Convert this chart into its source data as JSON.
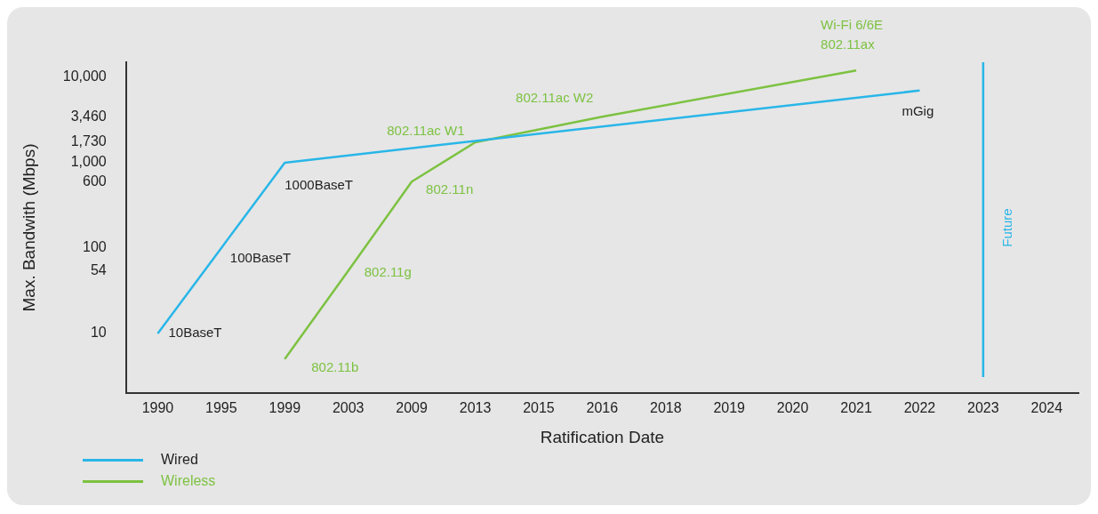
{
  "chart_data": {
    "type": "line",
    "xlabel": "Ratification Date",
    "ylabel": "Max. Bandwith (Mbps)",
    "categories": [
      "1990",
      "1995",
      "1999",
      "2003",
      "2009",
      "2013",
      "2015",
      "2016",
      "2018",
      "2019",
      "2020",
      "2021",
      "2022",
      "2023",
      "2024"
    ],
    "log": "y",
    "ylim": [
      2,
      15000
    ],
    "yticks": [
      10,
      54,
      100,
      600,
      {
        "value": 1000,
        "label": "1,000"
      },
      {
        "value": 1730,
        "label": "1,730"
      },
      {
        "value": 3460,
        "label": "3,460"
      },
      {
        "value": 10000,
        "label": "10,000"
      }
    ],
    "series": [
      {
        "name": "Wired",
        "color": "#29b6e8",
        "values": [
          10,
          100,
          1000,
          null,
          null,
          null,
          null,
          null,
          null,
          null,
          null,
          null,
          7000,
          null,
          null
        ]
      },
      {
        "name": "Wireless",
        "color": "#7dc242",
        "values": [
          null,
          null,
          5,
          54,
          600,
          1730,
          null,
          3460,
          null,
          null,
          null,
          12000,
          null,
          null,
          null
        ]
      }
    ],
    "annotations": [
      {
        "text": "10BaseT",
        "x": "1990",
        "y": 10
      },
      {
        "text": "100BaseT",
        "x": "1995",
        "y": 100
      },
      {
        "text": "1000BaseT",
        "x": "1999",
        "y": 1000
      },
      {
        "text": "mGig",
        "x": "2022",
        "y": 7000
      },
      {
        "text": "802.11b",
        "x": "1999",
        "y": 5
      },
      {
        "text": "802.11g",
        "x": "2003",
        "y": 54
      },
      {
        "text": "802.11n",
        "x": "2009",
        "y": 600
      },
      {
        "text": "802.11ac W1",
        "x": "2013",
        "y": 1730
      },
      {
        "text": "802.11ac W2",
        "x": "2016",
        "y": 3460
      },
      {
        "text": "Wi-Fi 6/6E\n802.11ax",
        "x": "2021",
        "y": 12000
      }
    ],
    "ref_lines": [
      {
        "axis": "x",
        "value": "2023",
        "label": "Future",
        "color": "#29b6e8"
      }
    ],
    "grid": false,
    "legend": "bottom left",
    "marker": "none",
    "line_style": "solid"
  }
}
